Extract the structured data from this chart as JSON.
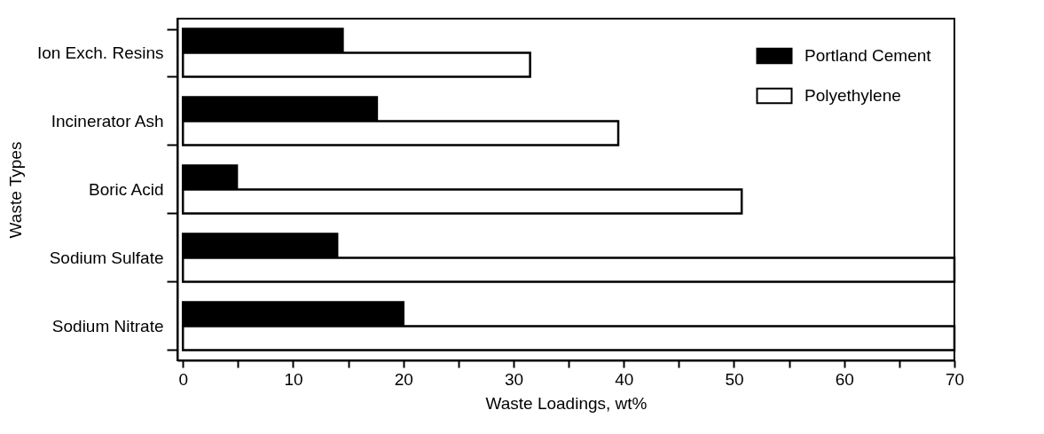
{
  "chart_data": {
    "type": "bar",
    "orientation": "horizontal",
    "xlabel": "Waste Loadings, wt%",
    "ylabel": "Waste Types",
    "categories": [
      "Ion Exch. Resins",
      "Incinerator Ash",
      "Boric Acid",
      "Sodium Sulfate",
      "Sodium Nitrate"
    ],
    "series": [
      {
        "name": "Portland Cement",
        "color": "#000000",
        "values": [
          14.5,
          17.6,
          4.9,
          14.0,
          20.0
        ]
      },
      {
        "name": "Polyethylene",
        "color": "#ffffff",
        "values": [
          31.5,
          39.5,
          50.7,
          70,
          70
        ]
      }
    ],
    "xlim": [
      -0.5,
      70
    ],
    "xticks": [
      0,
      {
        "value": 5,
        "label": null
      },
      10,
      {
        "value": 15,
        "label": null
      },
      20,
      {
        "value": 25,
        "label": null
      },
      30,
      {
        "value": 35,
        "label": null
      },
      40,
      {
        "value": 45,
        "label": null
      },
      50,
      {
        "value": 55,
        "label": null
      },
      60,
      {
        "value": 65,
        "label": null
      },
      70
    ],
    "grid": false,
    "legend": "top right"
  }
}
